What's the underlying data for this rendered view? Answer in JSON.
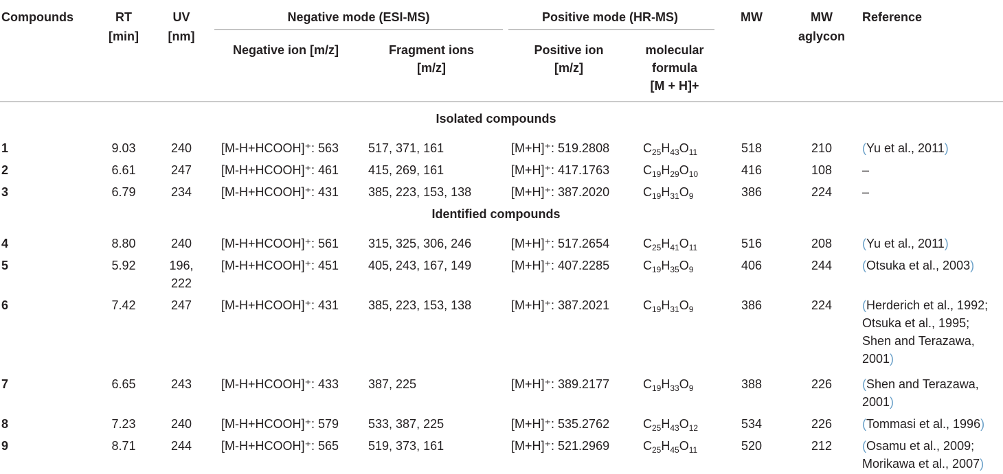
{
  "headers": {
    "compounds": "Compounds",
    "rt": [
      "RT",
      "[min]"
    ],
    "uv": [
      "UV",
      "[nm]"
    ],
    "neg_group": "Negative mode (ESI-MS)",
    "pos_group": "Positive mode (HR-MS)",
    "neg_ion": "Negative ion [m/z]",
    "frag": [
      "Fragment ions",
      "[m/z]"
    ],
    "pos_ion": [
      "Positive ion",
      "[m/z]"
    ],
    "formula": [
      "molecular",
      "formula",
      "[M + H]+"
    ],
    "mw": "MW",
    "mw_aglycon": [
      "MW",
      "aglycon"
    ],
    "reference": "Reference"
  },
  "sections": {
    "isolated": "Isolated compounds",
    "identified": "Identified compounds"
  },
  "rows": [
    {
      "id": "1",
      "rt": "9.03",
      "uv": [
        "240"
      ],
      "neg": "[M-H+HCOOH]⁺: 563",
      "frag": "517, 371, 161",
      "pos": "[M+H]⁺: 519.2808",
      "f": [
        "C",
        "25",
        "H",
        "43",
        "O",
        "11"
      ],
      "mw": "518",
      "agl": "210",
      "ref": [
        "Yu et al., 2011"
      ]
    },
    {
      "id": "2",
      "rt": "6.61",
      "uv": [
        "247"
      ],
      "neg": "[M-H+HCOOH]⁺: 461",
      "frag": "415, 269, 161",
      "pos": "[M+H]⁺: 417.1763",
      "f": [
        "C",
        "19",
        "H",
        "29",
        "O",
        "10"
      ],
      "mw": "416",
      "agl": "108",
      "ref_plain": "–"
    },
    {
      "id": "3",
      "rt": "6.79",
      "uv": [
        "234"
      ],
      "neg": "[M-H+HCOOH]⁺: 431",
      "frag": "385, 223, 153, 138",
      "pos": "[M+H]⁺: 387.2020",
      "f": [
        "C",
        "19",
        "H",
        "31",
        "O",
        "9"
      ],
      "mw": "386",
      "agl": "224",
      "ref_plain": "–"
    },
    {
      "id": "4",
      "rt": "8.80",
      "uv": [
        "240"
      ],
      "neg": "[M-H+HCOOH]⁺: 561",
      "frag": "315, 325, 306, 246",
      "pos": "[M+H]⁺: 517.2654",
      "f": [
        "C",
        "25",
        "H",
        "41",
        "O",
        "11"
      ],
      "mw": "516",
      "agl": "208",
      "ref": [
        "Yu et al., 2011"
      ]
    },
    {
      "id": "5",
      "rt": "5.92",
      "uv": [
        "196,",
        "222"
      ],
      "neg": "[M-H+HCOOH]⁺: 451",
      "frag": "405, 243, 167, 149",
      "pos": "[M+H]⁺: 407.2285",
      "f": [
        "C",
        "19",
        "H",
        "35",
        "O",
        "9"
      ],
      "mw": "406",
      "agl": "244",
      "ref": [
        "Otsuka et al., 2003"
      ]
    },
    {
      "id": "6",
      "rt": "7.42",
      "uv": [
        "247"
      ],
      "neg": "[M-H+HCOOH]⁺: 431",
      "frag": "385, 223, 153, 138",
      "pos": "[M+H]⁺: 387.2021",
      "f": [
        "C",
        "19",
        "H",
        "31",
        "O",
        "9"
      ],
      "mw": "386",
      "agl": "224",
      "ref": [
        "Herderich et al., 1992;",
        "Otsuka et al., 1995;",
        "Shen and Terazawa,",
        "2001"
      ]
    },
    {
      "id": "7",
      "rt": "6.65",
      "uv": [
        "243"
      ],
      "neg": "[M-H+HCOOH]⁺: 433",
      "frag": "387, 225",
      "pos": "[M+H]⁺: 389.2177",
      "f": [
        "C",
        "19",
        "H",
        "33",
        "O",
        "9"
      ],
      "mw": "388",
      "agl": "226",
      "ref": [
        "Shen and Terazawa,",
        "2001"
      ]
    },
    {
      "id": "8",
      "rt": "7.23",
      "uv": [
        "240"
      ],
      "neg": "[M-H+HCOOH]⁺: 579",
      "frag": "533, 387, 225",
      "pos": "[M+H]⁺: 535.2762",
      "f": [
        "C",
        "25",
        "H",
        "43",
        "O",
        "12"
      ],
      "mw": "534",
      "agl": "226",
      "ref": [
        "Tommasi et al., 1996"
      ]
    },
    {
      "id": "9",
      "rt": "8.71",
      "uv": [
        "244"
      ],
      "neg": "[M-H+HCOOH]⁺: 565",
      "frag": "519, 373, 161",
      "pos": "[M+H]⁺: 521.2969",
      "f": [
        "C",
        "25",
        "H",
        "45",
        "O",
        "11"
      ],
      "mw": "520",
      "agl": "212",
      "ref": [
        "Osamu et al., 2009;",
        "Morikawa et al., 2007"
      ]
    }
  ]
}
